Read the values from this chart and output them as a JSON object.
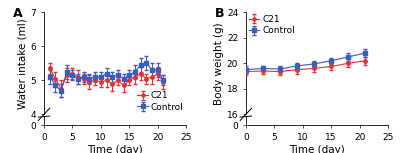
{
  "panel_A": {
    "title": "A",
    "xlabel": "Time (day)",
    "ylabel": "Water intake (ml)",
    "xlim": [
      0,
      25
    ],
    "ylim_main": [
      4.0,
      7.0
    ],
    "ylim_stub": [
      0,
      0.5
    ],
    "yticks_main": [
      4,
      5,
      6,
      7
    ],
    "yticks_stub": [
      0
    ],
    "xticks": [
      0,
      5,
      10,
      15,
      20,
      25
    ],
    "c21_x": [
      1,
      2,
      3,
      4,
      5,
      6,
      7,
      8,
      9,
      10,
      11,
      12,
      13,
      14,
      15,
      16,
      17,
      18,
      19,
      20,
      21
    ],
    "c21_y": [
      5.35,
      5.05,
      4.75,
      5.15,
      5.2,
      5.1,
      5.05,
      4.95,
      5.0,
      4.95,
      5.0,
      4.9,
      5.0,
      4.85,
      5.0,
      5.1,
      5.2,
      5.05,
      5.1,
      5.2,
      4.95
    ],
    "c21_err": [
      0.15,
      0.2,
      0.25,
      0.2,
      0.15,
      0.2,
      0.15,
      0.2,
      0.15,
      0.15,
      0.2,
      0.2,
      0.15,
      0.2,
      0.15,
      0.2,
      0.2,
      0.15,
      0.2,
      0.2,
      0.2
    ],
    "ctrl_x": [
      1,
      2,
      3,
      4,
      5,
      6,
      7,
      8,
      9,
      10,
      11,
      12,
      13,
      14,
      15,
      16,
      17,
      18,
      19,
      20,
      21
    ],
    "ctrl_y": [
      5.1,
      4.85,
      4.7,
      5.25,
      5.15,
      5.05,
      5.1,
      5.05,
      5.1,
      5.1,
      5.2,
      5.1,
      5.15,
      5.05,
      5.15,
      5.25,
      5.45,
      5.5,
      5.3,
      5.3,
      5.0
    ],
    "ctrl_err": [
      0.2,
      0.2,
      0.2,
      0.2,
      0.15,
      0.15,
      0.15,
      0.15,
      0.15,
      0.15,
      0.15,
      0.15,
      0.15,
      0.15,
      0.15,
      0.2,
      0.2,
      0.2,
      0.2,
      0.2,
      0.15
    ],
    "legend_loc": "lower right"
  },
  "panel_B": {
    "title": "B",
    "xlabel": "Time (day)",
    "ylabel": "Body weight (g)",
    "xlim": [
      0,
      25
    ],
    "ylim_main": [
      16.0,
      24.0
    ],
    "ylim_stub": [
      0,
      0.5
    ],
    "yticks_main": [
      16,
      18,
      20,
      22,
      24
    ],
    "yticks_stub": [
      0
    ],
    "xticks": [
      0,
      5,
      10,
      15,
      20,
      25
    ],
    "c21_x": [
      0,
      3,
      6,
      9,
      12,
      15,
      18,
      21
    ],
    "c21_y": [
      19.35,
      19.4,
      19.35,
      19.5,
      19.6,
      19.75,
      20.0,
      20.2
    ],
    "c21_err": [
      0.3,
      0.25,
      0.3,
      0.3,
      0.3,
      0.3,
      0.3,
      0.3
    ],
    "ctrl_x": [
      0,
      3,
      6,
      9,
      12,
      15,
      18,
      21
    ],
    "ctrl_y": [
      19.5,
      19.6,
      19.55,
      19.8,
      19.95,
      20.2,
      20.5,
      20.8
    ],
    "ctrl_err": [
      0.25,
      0.2,
      0.25,
      0.25,
      0.25,
      0.25,
      0.3,
      0.3
    ],
    "legend_loc": "upper left"
  },
  "c21_color": "#e83030",
  "ctrl_color": "#3d5bbf",
  "legend_fontsize": 6.5,
  "label_fontsize": 7.5,
  "tick_fontsize": 6.5,
  "title_fontsize": 9,
  "stub_height_ratio": 0.08,
  "main_height_ratio": 0.92
}
